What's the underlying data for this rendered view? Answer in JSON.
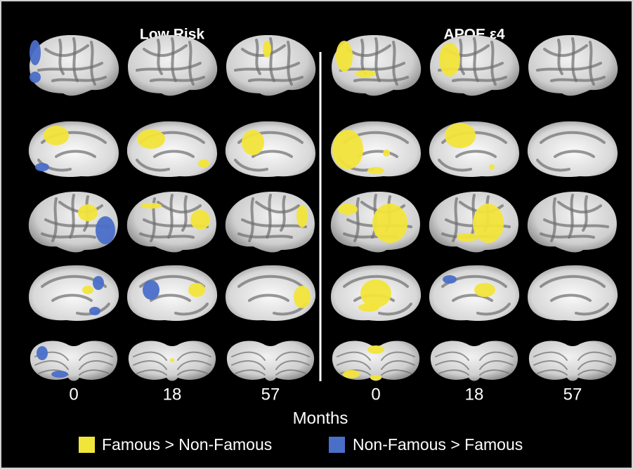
{
  "panels": [
    {
      "title": "Low Risk",
      "months": [
        0,
        18,
        57
      ]
    },
    {
      "title": "APOE ε4",
      "months": [
        0,
        18,
        57
      ]
    }
  ],
  "x_axis_label": "Months",
  "legend": [
    {
      "label": "Famous > Non-Famous",
      "color": "#f2e53a"
    },
    {
      "label": "Non-Famous > Famous",
      "color": "#4a6fc9"
    }
  ]
}
